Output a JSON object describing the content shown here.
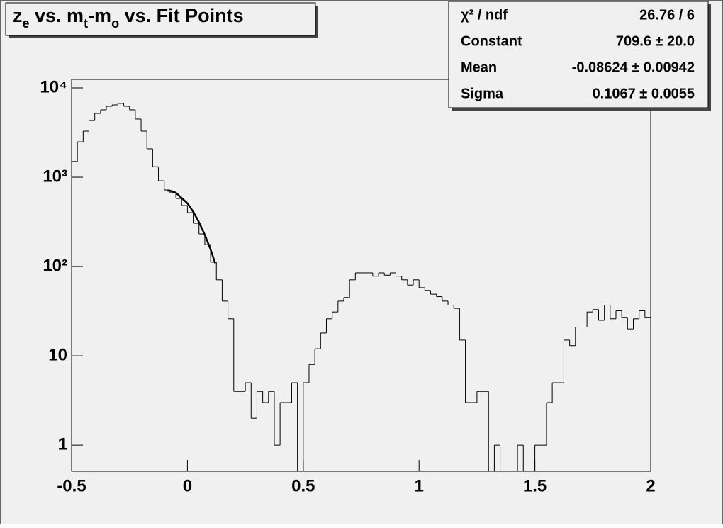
{
  "chart_data": {
    "type": "histogram",
    "title": [
      "z",
      "e",
      " vs. m",
      "t",
      "-m",
      "o",
      " vs. Fit Points"
    ],
    "bins": [
      -0.5,
      -0.475,
      -0.45,
      -0.425,
      -0.4,
      -0.375,
      -0.35,
      -0.325,
      -0.3,
      -0.275,
      -0.25,
      -0.225,
      -0.2,
      -0.175,
      -0.15,
      -0.125,
      -0.1,
      -0.075,
      -0.05,
      -0.025,
      0,
      0.025,
      0.05,
      0.075,
      0.1,
      0.125,
      0.15,
      0.175,
      0.2,
      0.225,
      0.25,
      0.275,
      0.3,
      0.325,
      0.35,
      0.375,
      0.4,
      0.425,
      0.45,
      0.475,
      0.5,
      0.525,
      0.55,
      0.575,
      0.6,
      0.625,
      0.65,
      0.675,
      0.7,
      0.725,
      0.75,
      0.775,
      0.8,
      0.825,
      0.85,
      0.875,
      0.9,
      0.925,
      0.95,
      0.975,
      1,
      1.025,
      1.05,
      1.075,
      1.1,
      1.125,
      1.15,
      1.175,
      1.2,
      1.225,
      1.25,
      1.275,
      1.3,
      1.325,
      1.35,
      1.375,
      1.4,
      1.425,
      1.45,
      1.475,
      1.5,
      1.525,
      1.55,
      1.575,
      1.6,
      1.625,
      1.65,
      1.675,
      1.7,
      1.725,
      1.75,
      1.775,
      1.8,
      1.825,
      1.85,
      1.875,
      1.9,
      1.925,
      1.95,
      1.975,
      2
    ],
    "values": [
      1500,
      2490,
      3280,
      4310,
      5180,
      5680,
      6220,
      6450,
      6700,
      6220,
      5680,
      4480,
      3280,
      2080,
      1310,
      912,
      720,
      669,
      578,
      481,
      401,
      305,
      232,
      176,
      112,
      71,
      41,
      26,
      4,
      4,
      5,
      2,
      4,
      3,
      4,
      1,
      3,
      3,
      5,
      0,
      5,
      8,
      12,
      18,
      26,
      31,
      41,
      45,
      71,
      85,
      85,
      85,
      78,
      85,
      80,
      85,
      78,
      71,
      62,
      71,
      58,
      54,
      49,
      46,
      41,
      37,
      34,
      15,
      3,
      3,
      4,
      4,
      0,
      1,
      0,
      0,
      0,
      1,
      0,
      0,
      1,
      1,
      3,
      5,
      5,
      15,
      13,
      21,
      21,
      31,
      33,
      25,
      37,
      26,
      32,
      27,
      20,
      26,
      32,
      27
    ],
    "color": "#000000",
    "fit": {
      "x": [
        -0.09,
        -0.07,
        -0.05,
        0,
        0.025,
        0.05,
        0.075,
        0.1,
        0.12
      ],
      "values": [
        709,
        701,
        670,
        511,
        412,
        314,
        227,
        155,
        109
      ],
      "color": "#000000"
    },
    "xlim": [
      -0.5,
      2
    ],
    "xticks": [
      -0.5,
      0,
      0.5,
      1,
      1.5,
      2
    ],
    "ylim": [
      0.51,
      12450
    ],
    "log_y": true,
    "yticks": [
      1,
      10,
      {
        "value": 100,
        "label": "10²"
      },
      {
        "value": 1000,
        "label": "10³"
      },
      {
        "value": 10000,
        "label": "10⁴"
      }
    ],
    "stats": [
      [
        "χ² / ndf",
        "26.76 / 6"
      ],
      [
        "Constant",
        "709.6 ± 20.0"
      ],
      [
        "Mean",
        "-0.08624 ± 0.00942"
      ],
      [
        "Sigma",
        "0.1067 ± 0.0055"
      ]
    ]
  }
}
